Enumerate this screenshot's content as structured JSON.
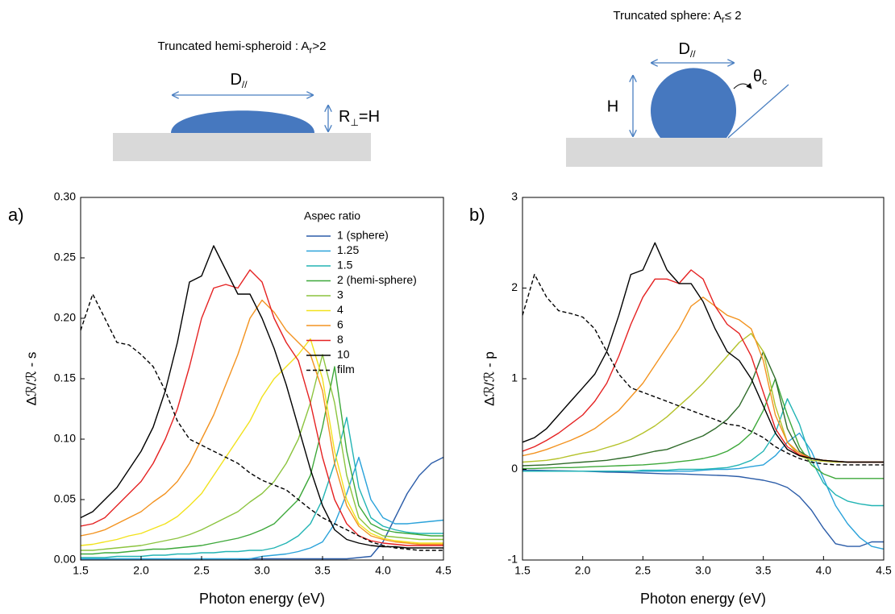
{
  "diagrams": [
    {
      "title": [
        "Truncated hemi-spheroid : A",
        "r",
        ">2"
      ],
      "width_label": [
        "D",
        "//"
      ],
      "height_label": [
        "R",
        "⊥",
        "=H"
      ]
    },
    {
      "title": [
        "Truncated sphere: A",
        "r",
        "≤ 2"
      ],
      "width_label": [
        "D",
        "//"
      ],
      "height_label": [
        "H"
      ],
      "angle_label": [
        "θ",
        "c"
      ]
    }
  ],
  "chart_data": [
    {
      "type": "line",
      "panel": "a)",
      "xlabel": "Photon energy (eV)",
      "ylabel": "Δℛ/ℛ - s",
      "legend_title": "Aspec ratio",
      "legend": "upper right",
      "xlim": [
        1.5,
        4.5
      ],
      "xticks": [
        1.5,
        {
          "value": 2,
          "label": "2.0"
        },
        2.5,
        {
          "value": 3,
          "label": "3.0"
        },
        3.5,
        {
          "value": 4,
          "label": "4.0"
        },
        4.5
      ],
      "ylim": [
        0,
        0.3
      ],
      "yticks": [
        {
          "value": 0,
          "label": "0.00"
        },
        0.05,
        {
          "value": 0.1,
          "label": "0.10"
        },
        0.15,
        {
          "value": 0.2,
          "label": "0.20"
        },
        0.25,
        {
          "value": 0.3,
          "label": "0.30"
        }
      ],
      "x": [
        1.5,
        1.6,
        1.7,
        1.8,
        1.9,
        2.0,
        2.1,
        2.2,
        2.3,
        2.4,
        2.5,
        2.6,
        2.7,
        2.8,
        2.9,
        3.0,
        3.1,
        3.2,
        3.3,
        3.4,
        3.5,
        3.6,
        3.7,
        3.8,
        3.9,
        4.0,
        4.1,
        4.2,
        4.3,
        4.4,
        4.5
      ],
      "series": [
        {
          "name": "1 (sphere)",
          "color": "#2b5ca8",
          "values": [
            0,
            0,
            0,
            0,
            0,
            0,
            0,
            0,
            0,
            0,
            0,
            0,
            0,
            0,
            0.001,
            0.001,
            0.001,
            0.001,
            0.001,
            0.001,
            0.001,
            0.001,
            0.001,
            0.002,
            0.003,
            0.015,
            0.035,
            0.055,
            0.07,
            0.08,
            0.085
          ]
        },
        {
          "name": "1.25",
          "color": "#2aa2da",
          "values": [
            0.001,
            0.001,
            0.001,
            0.001,
            0.001,
            0.001,
            0.001,
            0.001,
            0.001,
            0.001,
            0.001,
            0.001,
            0.001,
            0.001,
            0.001,
            0.003,
            0.004,
            0.005,
            0.007,
            0.01,
            0.015,
            0.03,
            0.055,
            0.085,
            0.05,
            0.035,
            0.03,
            0.03,
            0.031,
            0.032,
            0.033
          ]
        },
        {
          "name": "1.5",
          "color": "#22b4b4",
          "values": [
            0.002,
            0.002,
            0.002,
            0.003,
            0.003,
            0.003,
            0.004,
            0.004,
            0.005,
            0.005,
            0.006,
            0.006,
            0.007,
            0.007,
            0.008,
            0.008,
            0.01,
            0.014,
            0.02,
            0.03,
            0.05,
            0.08,
            0.118,
            0.06,
            0.035,
            0.028,
            0.025,
            0.023,
            0.022,
            0.022,
            0.022
          ]
        },
        {
          "name": "2 (hemi-sphere)",
          "color": "#3da83a",
          "values": [
            0.005,
            0.005,
            0.006,
            0.006,
            0.007,
            0.008,
            0.009,
            0.009,
            0.01,
            0.011,
            0.012,
            0.014,
            0.016,
            0.018,
            0.021,
            0.025,
            0.03,
            0.04,
            0.05,
            0.07,
            0.11,
            0.16,
            0.09,
            0.045,
            0.03,
            0.025,
            0.023,
            0.022,
            0.021,
            0.02,
            0.02
          ]
        },
        {
          "name": "3",
          "color": "#8cc43f",
          "values": [
            0.008,
            0.008,
            0.009,
            0.01,
            0.011,
            0.012,
            0.014,
            0.016,
            0.018,
            0.021,
            0.025,
            0.03,
            0.035,
            0.04,
            0.048,
            0.055,
            0.065,
            0.08,
            0.1,
            0.13,
            0.17,
            0.13,
            0.07,
            0.035,
            0.025,
            0.02,
            0.019,
            0.018,
            0.017,
            0.017,
            0.017
          ]
        },
        {
          "name": "4",
          "color": "#f2e21c",
          "values": [
            0.012,
            0.013,
            0.015,
            0.017,
            0.02,
            0.022,
            0.026,
            0.03,
            0.036,
            0.045,
            0.055,
            0.07,
            0.085,
            0.1,
            0.115,
            0.135,
            0.15,
            0.16,
            0.17,
            0.183,
            0.15,
            0.09,
            0.05,
            0.03,
            0.022,
            0.018,
            0.016,
            0.015,
            0.014,
            0.014,
            0.014
          ]
        },
        {
          "name": "6",
          "color": "#f39320",
          "values": [
            0.02,
            0.022,
            0.025,
            0.03,
            0.035,
            0.04,
            0.048,
            0.055,
            0.065,
            0.08,
            0.1,
            0.12,
            0.145,
            0.17,
            0.2,
            0.215,
            0.205,
            0.19,
            0.18,
            0.17,
            0.14,
            0.08,
            0.045,
            0.028,
            0.02,
            0.017,
            0.015,
            0.014,
            0.013,
            0.013,
            0.013
          ]
        },
        {
          "name": "8",
          "color": "#e52222",
          "values": [
            0.028,
            0.03,
            0.035,
            0.045,
            0.055,
            0.065,
            0.08,
            0.1,
            0.125,
            0.16,
            0.2,
            0.225,
            0.228,
            0.225,
            0.24,
            0.23,
            0.2,
            0.18,
            0.165,
            0.13,
            0.085,
            0.05,
            0.03,
            0.02,
            0.016,
            0.014,
            0.013,
            0.012,
            0.012,
            0.012,
            0.012
          ]
        },
        {
          "name": "10",
          "color": "#000000",
          "values": [
            0.035,
            0.04,
            0.05,
            0.06,
            0.075,
            0.09,
            0.11,
            0.14,
            0.18,
            0.23,
            0.235,
            0.26,
            0.24,
            0.22,
            0.22,
            0.2,
            0.175,
            0.145,
            0.11,
            0.075,
            0.045,
            0.025,
            0.017,
            0.014,
            0.012,
            0.011,
            0.011,
            0.01,
            0.01,
            0.01,
            0.01
          ]
        },
        {
          "name": "film",
          "color": "#000000",
          "dashed": true,
          "values": [
            0.19,
            0.22,
            0.2,
            0.18,
            0.178,
            0.17,
            0.16,
            0.14,
            0.115,
            0.1,
            0.095,
            0.09,
            0.085,
            0.08,
            0.072,
            0.066,
            0.062,
            0.058,
            0.05,
            0.042,
            0.035,
            0.03,
            0.025,
            0.02,
            0.015,
            0.012,
            0.01,
            0.009,
            0.008,
            0.008,
            0.008
          ]
        }
      ]
    },
    {
      "type": "line",
      "panel": "b)",
      "xlabel": "Photon energy (eV)",
      "ylabel": "Δℛ/ℛ - p",
      "xlim": [
        1.5,
        4.5
      ],
      "xticks": [
        1.5,
        {
          "value": 2,
          "label": "2.0"
        },
        2.5,
        {
          "value": 3,
          "label": "3.0"
        },
        3.5,
        {
          "value": 4,
          "label": "4.0"
        },
        4.5
      ],
      "ylim": [
        -1,
        3
      ],
      "yticks": [
        -1,
        0,
        1,
        2,
        3
      ],
      "x": [
        1.5,
        1.6,
        1.7,
        1.8,
        1.9,
        2.0,
        2.1,
        2.2,
        2.3,
        2.4,
        2.5,
        2.6,
        2.7,
        2.8,
        2.9,
        3.0,
        3.1,
        3.2,
        3.3,
        3.4,
        3.5,
        3.6,
        3.7,
        3.8,
        3.9,
        4.0,
        4.1,
        4.2,
        4.3,
        4.4,
        4.5
      ],
      "series": [
        {
          "color": "#2b5ca8",
          "values": [
            -0.01,
            -0.01,
            -0.012,
            -0.015,
            -0.018,
            -0.02,
            -0.025,
            -0.03,
            -0.033,
            -0.036,
            -0.04,
            -0.045,
            -0.05,
            -0.05,
            -0.055,
            -0.06,
            -0.065,
            -0.07,
            -0.08,
            -0.1,
            -0.12,
            -0.15,
            -0.2,
            -0.3,
            -0.45,
            -0.65,
            -0.82,
            -0.85,
            -0.85,
            -0.8,
            -0.8
          ]
        },
        {
          "color": "#2aa2da",
          "values": [
            -0.02,
            -0.02,
            -0.02,
            -0.02,
            -0.02,
            -0.02,
            -0.02,
            -0.02,
            -0.02,
            -0.02,
            -0.02,
            -0.02,
            -0.02,
            -0.02,
            -0.02,
            -0.01,
            0,
            0,
            0.01,
            0.03,
            0.05,
            0.15,
            0.3,
            0.4,
            0.2,
            -0.1,
            -0.4,
            -0.6,
            -0.75,
            -0.85,
            -0.88
          ]
        },
        {
          "color": "#22b4b4",
          "values": [
            -0.02,
            -0.02,
            -0.02,
            -0.02,
            -0.02,
            -0.02,
            -0.02,
            -0.02,
            -0.02,
            -0.02,
            -0.01,
            -0.01,
            -0.01,
            0,
            0,
            0,
            0.01,
            0.02,
            0.05,
            0.1,
            0.2,
            0.4,
            0.78,
            0.5,
            0.1,
            -0.15,
            -0.28,
            -0.35,
            -0.38,
            -0.4,
            -0.4
          ]
        },
        {
          "color": "#3da83a",
          "values": [
            0.01,
            0.01,
            0.015,
            0.02,
            0.02,
            0.025,
            0.03,
            0.035,
            0.04,
            0.045,
            0.05,
            0.06,
            0.07,
            0.085,
            0.1,
            0.12,
            0.15,
            0.2,
            0.28,
            0.4,
            0.65,
            1.0,
            0.6,
            0.25,
            0.05,
            -0.05,
            -0.1,
            -0.1,
            -0.1,
            -0.1,
            -0.1
          ]
        },
        {
          "color": "#2f6b2a",
          "values": [
            0.04,
            0.045,
            0.05,
            0.06,
            0.07,
            0.08,
            0.09,
            0.1,
            0.12,
            0.14,
            0.17,
            0.2,
            0.22,
            0.27,
            0.32,
            0.37,
            0.45,
            0.55,
            0.7,
            0.95,
            1.3,
            1.0,
            0.45,
            0.2,
            0.12,
            0.1,
            0.09,
            0.08,
            0.08,
            0.08,
            0.08
          ]
        },
        {
          "color": "#b5c22a",
          "values": [
            0.08,
            0.09,
            0.1,
            0.12,
            0.15,
            0.18,
            0.2,
            0.24,
            0.28,
            0.33,
            0.4,
            0.48,
            0.58,
            0.7,
            0.82,
            0.95,
            1.1,
            1.25,
            1.4,
            1.5,
            1.3,
            0.7,
            0.3,
            0.15,
            0.1,
            0.09,
            0.08,
            0.08,
            0.08,
            0.08,
            0.08
          ]
        },
        {
          "color": "#f39320",
          "values": [
            0.15,
            0.18,
            0.22,
            0.27,
            0.32,
            0.38,
            0.45,
            0.55,
            0.65,
            0.8,
            0.95,
            1.15,
            1.35,
            1.55,
            1.8,
            1.9,
            1.8,
            1.7,
            1.65,
            1.55,
            1.2,
            0.6,
            0.3,
            0.18,
            0.12,
            0.1,
            0.09,
            0.08,
            0.08,
            0.08,
            0.08
          ]
        },
        {
          "color": "#e52222",
          "values": [
            0.2,
            0.25,
            0.32,
            0.4,
            0.5,
            0.6,
            0.75,
            0.95,
            1.25,
            1.6,
            1.9,
            2.1,
            2.1,
            2.05,
            2.2,
            2.1,
            1.8,
            1.6,
            1.5,
            1.25,
            0.85,
            0.45,
            0.25,
            0.16,
            0.12,
            0.1,
            0.09,
            0.08,
            0.08,
            0.08,
            0.08
          ]
        },
        {
          "color": "#000000",
          "values": [
            0.3,
            0.35,
            0.45,
            0.6,
            0.75,
            0.9,
            1.05,
            1.3,
            1.7,
            2.15,
            2.2,
            2.5,
            2.2,
            2.05,
            2.05,
            1.85,
            1.55,
            1.3,
            1.2,
            1.0,
            0.7,
            0.4,
            0.22,
            0.15,
            0.12,
            0.1,
            0.09,
            0.08,
            0.08,
            0.08,
            0.08
          ]
        },
        {
          "color": "#000000",
          "dashed": true,
          "values": [
            1.7,
            2.15,
            1.9,
            1.75,
            1.72,
            1.68,
            1.55,
            1.3,
            1.05,
            0.9,
            0.85,
            0.8,
            0.75,
            0.7,
            0.65,
            0.6,
            0.55,
            0.5,
            0.48,
            0.42,
            0.35,
            0.25,
            0.18,
            0.12,
            0.08,
            0.06,
            0.05,
            0.05,
            0.05,
            0.05,
            0.05
          ]
        }
      ]
    }
  ]
}
